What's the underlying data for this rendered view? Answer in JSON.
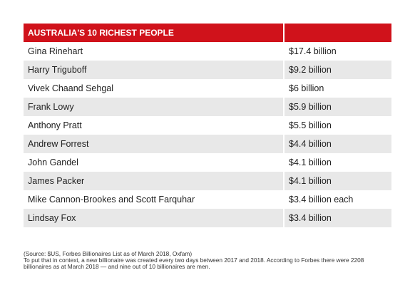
{
  "table": {
    "title": "AUSTRALIA'S 10 RICHEST PEOPLE",
    "rows": [
      [
        "Gina Rinehart",
        "$17.4 billion"
      ],
      [
        "Harry Triguboff",
        "$9.2 billion"
      ],
      [
        "Vivek Chaand Sehgal",
        "$6 billion"
      ],
      [
        "Frank Lowy",
        "$5.9 billion"
      ],
      [
        "Anthony Pratt",
        "$5.5 billion"
      ],
      [
        "Andrew Forrest",
        "$4.4 billion"
      ],
      [
        "John Gandel",
        "$4.1 billion"
      ],
      [
        "James Packer",
        "$4.1 billion"
      ],
      [
        "Mike Cannon-Brookes and Scott Farquhar",
        "$3.4 billion each"
      ],
      [
        "Lindsay Fox",
        "$3.4 billion"
      ]
    ]
  },
  "notes": {
    "source": "(Source: $US, Forbes Billionaires List as of March 2018, Oxfam)",
    "context": "To put that in context, a new billionaire was created every two days between 2017 and 2018. According to Forbes there were 2208 billionaires as at March 2018 — and nine out of 10 billionaires are men."
  }
}
